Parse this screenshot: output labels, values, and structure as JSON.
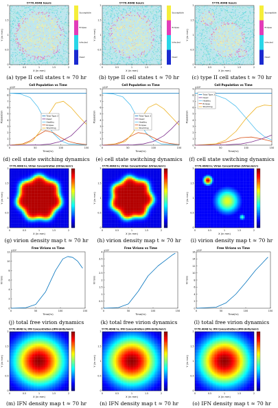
{
  "figure": {
    "rows": [
      {
        "kind": "cell_states",
        "panels": [
          {
            "title": "t=70.4048 hours",
            "xlabel": "X (in mm)",
            "ylabel": "Y (in mm)",
            "legend": [
              "Susceptible",
              "Eclipse",
              "Infected",
              "Dead"
            ],
            "caption": "(a) type II cell states t ≈ 70 hr",
            "variant": 0
          },
          {
            "title": "t=70.4048 hours",
            "xlabel": "X (in mm)",
            "ylabel": "Y (in mm)",
            "legend": [
              "Susceptible",
              "Eclipse",
              "Infected",
              "Dead"
            ],
            "caption": "(b) type II cell states t ≈ 70 hr",
            "variant": 1
          },
          {
            "title": "t=70.4048 hours",
            "xlabel": "X (in mm)",
            "ylabel": "Y (in mm)",
            "legend": [
              "Susceptible",
              "Eclipse",
              "Infected",
              "Dead"
            ],
            "caption": "(c) type II cell states t ≈ 70 hr",
            "variant": 2
          }
        ]
      },
      {
        "kind": "population",
        "panels": [
          {
            "title": "Cell Population vs Time",
            "xlabel": "Time(hr)",
            "ylabel": "Population",
            "exponent": "×10⁴",
            "legend": [
              "Total Type 2",
              "Dead",
              "Healthy",
              "Eclipse",
              "Shedding"
            ],
            "caption": "(d) cell state switching dynamics"
          },
          {
            "title": "Cell Population vs Time",
            "xlabel": "Time(hr)",
            "ylabel": "Population",
            "exponent": "×10⁴",
            "legend": [
              "Total Type 2",
              "Dead",
              "Healthy",
              "Eclipse",
              "Shedding"
            ],
            "caption": "(e) cell state switching dynamics"
          },
          {
            "title": "Cell Population vs Time",
            "xlabel": "Time(hr)",
            "ylabel": "Population",
            "exponent": "×10⁴",
            "legend": [
              "Total Type 2",
              "Dead",
              "Healthy",
              "Eclipse",
              "Shedding"
            ],
            "caption": "(f) cell state switching dynamics"
          }
        ]
      },
      {
        "kind": "virion_map",
        "panels": [
          {
            "title": "t=70.4048 hr, Virion Concentration [Virion/mm²]",
            "xlabel": "X (in mm)",
            "ylabel": "Y (in mm)",
            "caption": "(g) virion density map t ≈ 70 hr",
            "variant": 0
          },
          {
            "title": "t=70.4048 hr, Virion Concentration [Virion/mm²]",
            "xlabel": "X (in mm)",
            "ylabel": "Y (in mm)",
            "caption": "(h) virion density map t ≈ 70 hr",
            "variant": 1
          },
          {
            "title": "t=70.4048 hr, Virion Concentration [Virion/mm²]",
            "xlabel": "X (in mm)",
            "ylabel": "Y (in mm)",
            "caption": "(i) virion density map t ≈ 70 hr",
            "variant": 2
          }
        ]
      },
      {
        "kind": "free_virions",
        "panels": [
          {
            "title": "Free Virions vs Time",
            "xlabel": "Time(hr)",
            "ylabel": "Virions",
            "exponent": "×10⁵",
            "caption": "(j) total free virion dynamics"
          },
          {
            "title": "Free Virions vs Time",
            "xlabel": "Time(hr)",
            "ylabel": "Virions",
            "exponent": "×10⁵",
            "caption": "(k) total free virion dynamics"
          },
          {
            "title": "Free Virions vs Time",
            "xlabel": "Time(hr)",
            "ylabel": "Virions",
            "exponent": "×10⁵",
            "caption": "(l) total free virion dynamics"
          }
        ]
      },
      {
        "kind": "ifn_map",
        "panels": [
          {
            "title": "t=70.4048 hr, IFN Concentration [IFN-Units/mm²]",
            "xlabel": "X (in mm)",
            "ylabel": "Y (in mm)",
            "caption": "(m) IFN density map t ≈ 70 hr"
          },
          {
            "title": "t=70.4048 hr, IFN Concentration [IFN-Units/mm²]",
            "xlabel": "X (in mm)",
            "ylabel": "Y (in mm)",
            "caption": "(n) IFN density map t ≈ 70 hr"
          },
          {
            "title": "t=70.4048 hr, IFN Concentration [IFN-Units/mm²]",
            "xlabel": "X (in mm)",
            "ylabel": "Y (in mm)",
            "caption": "(o) IFN density map t ≈ 70 hr"
          }
        ]
      }
    ]
  },
  "chart_data": [
    {
      "type": "line",
      "chart": "population",
      "title": "Cell Population vs Time",
      "xlabel": "Time(hr)",
      "ylabel": "Population",
      "xlim": [
        0,
        150
      ],
      "ylim": [
        0,
        9
      ],
      "y_exponent": "×10⁴",
      "xticks": [
        0,
        50,
        100,
        150
      ],
      "yticks": [
        0,
        1,
        2,
        3,
        4,
        5,
        6,
        7,
        8,
        9
      ],
      "panels": [
        {
          "panel": "d",
          "series": [
            {
              "name": "Total Type 2",
              "color": "#0072bd",
              "x": [
                0,
                150
              ],
              "y": [
                8.3,
                8.3
              ]
            },
            {
              "name": "Healthy",
              "color": "#4dbeee",
              "x": [
                0,
                20,
                40,
                55,
                70,
                85,
                100,
                115,
                150
              ],
              "y": [
                8.3,
                8.2,
                7.6,
                6.1,
                3.8,
                1.9,
                0.7,
                0.2,
                0.05
              ]
            },
            {
              "name": "Eclipse",
              "color": "#d95319",
              "x": [
                0,
                25,
                40,
                55,
                70,
                85,
                100,
                115,
                130,
                150
              ],
              "y": [
                0,
                0.2,
                0.7,
                1.6,
                2.3,
                2.0,
                1.2,
                0.6,
                0.3,
                0.1
              ]
            },
            {
              "name": "Shedding",
              "color": "#edb120",
              "x": [
                0,
                30,
                45,
                60,
                75,
                90,
                105,
                120,
                135,
                150
              ],
              "y": [
                0,
                0.2,
                0.7,
                2.3,
                4.8,
                6.7,
                7.0,
                6.0,
                4.6,
                3.3
              ]
            },
            {
              "name": "Dead",
              "color": "#7e2f8e",
              "x": [
                0,
                60,
                80,
                100,
                120,
                135,
                150
              ],
              "y": [
                0,
                0.05,
                0.2,
                0.6,
                1.5,
                2.7,
                4.0
              ]
            }
          ]
        },
        {
          "panel": "e",
          "series": [
            {
              "name": "Total Type 2",
              "color": "#0072bd",
              "x": [
                0,
                150
              ],
              "y": [
                8.3,
                8.3
              ]
            },
            {
              "name": "Healthy",
              "color": "#4dbeee",
              "x": [
                0,
                20,
                40,
                55,
                70,
                85,
                100,
                115,
                150
              ],
              "y": [
                8.3,
                8.2,
                7.7,
                6.4,
                4.1,
                2.0,
                0.8,
                0.2,
                0.05
              ]
            },
            {
              "name": "Eclipse",
              "color": "#d95319",
              "x": [
                0,
                25,
                40,
                55,
                70,
                85,
                100,
                115,
                130,
                150
              ],
              "y": [
                0,
                0.2,
                0.6,
                1.4,
                2.0,
                1.8,
                1.2,
                0.6,
                0.3,
                0.1
              ]
            },
            {
              "name": "Shedding",
              "color": "#edb120",
              "x": [
                0,
                30,
                45,
                60,
                75,
                90,
                105,
                120,
                135,
                150
              ],
              "y": [
                0,
                0.2,
                0.6,
                2.0,
                4.2,
                6.0,
                6.6,
                5.8,
                4.5,
                3.2
              ]
            },
            {
              "name": "Dead",
              "color": "#7e2f8e",
              "x": [
                0,
                60,
                80,
                100,
                120,
                135,
                150
              ],
              "y": [
                0,
                0.05,
                0.2,
                0.6,
                1.5,
                2.6,
                3.9
              ]
            }
          ]
        },
        {
          "panel": "f",
          "series": [
            {
              "name": "Total Type 2",
              "color": "#0072bd",
              "x": [
                0,
                150
              ],
              "y": [
                8.3,
                8.3
              ]
            },
            {
              "name": "Healthy",
              "color": "#4dbeee",
              "x": [
                0,
                20,
                40,
                60,
                80,
                100,
                120,
                135,
                150
              ],
              "y": [
                8.3,
                8.2,
                8.0,
                7.4,
                6.2,
                4.3,
                2.4,
                1.4,
                0.8
              ]
            },
            {
              "name": "Eclipse",
              "color": "#d95319",
              "x": [
                0,
                30,
                50,
                70,
                90,
                110,
                130,
                150
              ],
              "y": [
                0,
                0.1,
                0.3,
                0.7,
                1.2,
                1.3,
                1.0,
                0.6
              ]
            },
            {
              "name": "Shedding",
              "color": "#edb120",
              "x": [
                0,
                40,
                60,
                80,
                100,
                120,
                135,
                150
              ],
              "y": [
                0,
                0.2,
                0.8,
                2.2,
                4.3,
                6.0,
                6.4,
                6.3
              ]
            },
            {
              "name": "Dead",
              "color": "#7e2f8e",
              "x": [
                0,
                60,
                90,
                110,
                130,
                150
              ],
              "y": [
                0,
                0.05,
                0.2,
                0.5,
                1.0,
                1.6
              ]
            }
          ]
        }
      ]
    },
    {
      "type": "line",
      "chart": "free_virions",
      "title": "Free Virions vs Time",
      "xlabel": "Time(hr)",
      "ylabel": "Virions",
      "y_exponent": "×10⁵",
      "panels": [
        {
          "panel": "j",
          "xlim": [
            0,
            150
          ],
          "ylim": [
            0,
            12
          ],
          "yticks": [
            0,
            2,
            4,
            6,
            8,
            10,
            12
          ],
          "xticks": [
            0,
            50,
            100,
            150
          ],
          "series": [
            {
              "color": "#0072bd",
              "x": [
                0,
                30,
                50,
                70,
                90,
                105,
                115,
                125,
                135,
                145
              ],
              "y": [
                0,
                0.1,
                0.8,
                3.5,
                8.0,
                10.5,
                11.0,
                10.8,
                10.0,
                8.5
              ]
            }
          ]
        },
        {
          "panel": "k",
          "xlim": [
            0,
            150
          ],
          "ylim": [
            0,
            4
          ],
          "yticks": [
            0,
            0.5,
            1,
            1.5,
            2,
            2.5,
            3,
            3.5,
            4
          ],
          "xticks": [
            0,
            50,
            100,
            150
          ],
          "series": [
            {
              "color": "#0072bd",
              "x": [
                0,
                30,
                50,
                70,
                90,
                110,
                125,
                140,
                145
              ],
              "y": [
                0,
                0.05,
                0.3,
                1.2,
                2.3,
                3.0,
                3.4,
                3.8,
                3.9
              ]
            }
          ]
        },
        {
          "panel": "l",
          "xlim": [
            0,
            150
          ],
          "ylim": [
            0,
            16
          ],
          "yticks": [
            0,
            2,
            4,
            6,
            8,
            10,
            12,
            14,
            16
          ],
          "xticks": [
            0,
            50,
            100,
            150
          ],
          "series": [
            {
              "color": "#0072bd",
              "x": [
                0,
                40,
                60,
                80,
                100,
                120,
                135,
                145
              ],
              "y": [
                0,
                0.3,
                1.5,
                4.0,
                7.3,
                10.8,
                13.0,
                14.5
              ]
            }
          ]
        }
      ]
    }
  ]
}
